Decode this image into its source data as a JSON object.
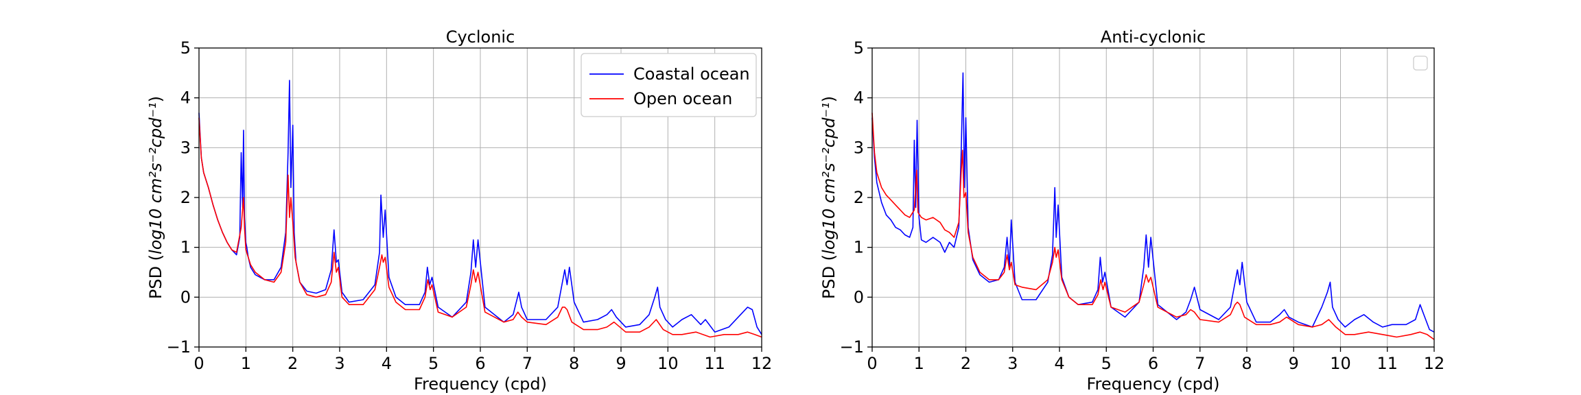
{
  "chart_data": [
    {
      "type": "line",
      "title": "Cyclonic",
      "xlabel": "Frequency (cpd)",
      "ylabel_prefix": "PSD (",
      "ylabel_math": "log10 cm²s⁻²cpd⁻¹",
      "ylabel_suffix": ")",
      "xlim": [
        0,
        12
      ],
      "ylim": [
        -1,
        5
      ],
      "xticks": [
        "0",
        "1",
        "2",
        "3",
        "4",
        "5",
        "6",
        "7",
        "8",
        "9",
        "10",
        "11",
        "12"
      ],
      "yticks": [
        "−1",
        "0",
        "1",
        "2",
        "3",
        "4",
        "5"
      ],
      "grid": true,
      "legend": "top-right",
      "series": [
        {
          "name": "Coastal ocean",
          "color": "#0000ff",
          "x": [
            0,
            0.05,
            0.1,
            0.2,
            0.3,
            0.4,
            0.5,
            0.6,
            0.7,
            0.8,
            0.87,
            0.9,
            0.93,
            0.95,
            0.97,
            1.0,
            1.02,
            1.05,
            1.1,
            1.2,
            1.4,
            1.6,
            1.75,
            1.85,
            1.9,
            1.93,
            1.96,
            2.0,
            2.03,
            2.07,
            2.15,
            2.3,
            2.5,
            2.7,
            2.82,
            2.88,
            2.93,
            2.97,
            3.05,
            3.2,
            3.5,
            3.75,
            3.85,
            3.88,
            3.93,
            3.97,
            4.05,
            4.2,
            4.4,
            4.7,
            4.82,
            4.87,
            4.92,
            4.97,
            5.1,
            5.4,
            5.7,
            5.8,
            5.85,
            5.9,
            5.95,
            6.1,
            6.5,
            6.7,
            6.78,
            6.82,
            6.88,
            7.0,
            7.4,
            7.65,
            7.75,
            7.8,
            7.85,
            7.9,
            8.0,
            8.2,
            8.5,
            8.7,
            8.8,
            8.9,
            9.1,
            9.4,
            9.6,
            9.72,
            9.78,
            9.83,
            9.95,
            10.1,
            10.3,
            10.5,
            10.7,
            10.8,
            11.0,
            11.3,
            11.5,
            11.7,
            11.8,
            11.9,
            12.0
          ],
          "y": [
            3.7,
            2.8,
            2.5,
            2.2,
            1.85,
            1.55,
            1.3,
            1.1,
            0.95,
            0.85,
            1.2,
            2.9,
            1.8,
            3.35,
            1.6,
            1.1,
            1.0,
            0.8,
            0.6,
            0.45,
            0.35,
            0.35,
            0.6,
            1.3,
            2.9,
            4.35,
            2.2,
            3.45,
            1.3,
            0.7,
            0.3,
            0.12,
            0.08,
            0.15,
            0.55,
            1.35,
            0.7,
            0.75,
            0.1,
            -0.1,
            -0.05,
            0.25,
            0.9,
            2.05,
            1.2,
            1.75,
            0.4,
            0.0,
            -0.15,
            -0.15,
            0.1,
            0.6,
            0.25,
            0.4,
            -0.2,
            -0.4,
            -0.1,
            0.5,
            1.15,
            0.6,
            1.15,
            -0.2,
            -0.5,
            -0.35,
            -0.05,
            0.1,
            -0.2,
            -0.45,
            -0.45,
            -0.2,
            0.3,
            0.55,
            0.25,
            0.6,
            -0.1,
            -0.5,
            -0.45,
            -0.35,
            -0.25,
            -0.4,
            -0.6,
            -0.55,
            -0.35,
            0.0,
            0.2,
            -0.2,
            -0.45,
            -0.6,
            -0.45,
            -0.35,
            -0.55,
            -0.45,
            -0.7,
            -0.6,
            -0.4,
            -0.2,
            -0.25,
            -0.6,
            -0.75
          ]
        },
        {
          "name": "Open ocean",
          "color": "#ff0000",
          "x": [
            0,
            0.05,
            0.1,
            0.2,
            0.3,
            0.4,
            0.5,
            0.6,
            0.7,
            0.8,
            0.9,
            0.95,
            0.97,
            1.0,
            1.05,
            1.1,
            1.2,
            1.4,
            1.6,
            1.75,
            1.85,
            1.9,
            1.93,
            1.96,
            2.0,
            2.05,
            2.15,
            2.3,
            2.5,
            2.7,
            2.82,
            2.88,
            2.93,
            2.97,
            3.05,
            3.2,
            3.5,
            3.75,
            3.85,
            3.9,
            3.93,
            3.97,
            4.05,
            4.2,
            4.4,
            4.7,
            4.82,
            4.88,
            4.93,
            4.97,
            5.1,
            5.4,
            5.7,
            5.8,
            5.85,
            5.9,
            5.95,
            6.1,
            6.5,
            6.7,
            6.8,
            6.88,
            7.0,
            7.4,
            7.65,
            7.75,
            7.8,
            7.85,
            7.95,
            8.2,
            8.5,
            8.7,
            8.85,
            9.1,
            9.4,
            9.6,
            9.75,
            9.9,
            10.1,
            10.3,
            10.6,
            10.9,
            11.2,
            11.5,
            11.7,
            11.85,
            12.0
          ],
          "y": [
            3.6,
            2.8,
            2.5,
            2.2,
            1.85,
            1.55,
            1.3,
            1.1,
            0.95,
            0.9,
            1.4,
            2.0,
            1.4,
            0.95,
            0.8,
            0.65,
            0.5,
            0.35,
            0.3,
            0.5,
            1.1,
            2.45,
            1.6,
            2.0,
            1.5,
            0.8,
            0.3,
            0.05,
            0.0,
            0.05,
            0.3,
            0.9,
            0.5,
            0.6,
            0.0,
            -0.15,
            -0.15,
            0.15,
            0.6,
            0.85,
            0.7,
            0.8,
            0.2,
            -0.1,
            -0.25,
            -0.25,
            0.0,
            0.35,
            0.15,
            0.25,
            -0.3,
            -0.4,
            -0.2,
            0.25,
            0.55,
            0.3,
            0.5,
            -0.3,
            -0.5,
            -0.45,
            -0.3,
            -0.4,
            -0.5,
            -0.55,
            -0.4,
            -0.2,
            -0.2,
            -0.25,
            -0.5,
            -0.65,
            -0.65,
            -0.6,
            -0.5,
            -0.7,
            -0.7,
            -0.6,
            -0.45,
            -0.65,
            -0.75,
            -0.75,
            -0.7,
            -0.8,
            -0.75,
            -0.75,
            -0.7,
            -0.75,
            -0.8
          ]
        }
      ]
    },
    {
      "type": "line",
      "title": "Anti-cyclonic",
      "xlabel": "Frequency (cpd)",
      "ylabel_prefix": "PSD (",
      "ylabel_math": "log10 cm²s⁻²cpd⁻¹",
      "ylabel_suffix": ")",
      "xlim": [
        0,
        12
      ],
      "ylim": [
        -1,
        5
      ],
      "xticks": [
        "0",
        "1",
        "2",
        "3",
        "4",
        "5",
        "6",
        "7",
        "8",
        "9",
        "10",
        "11",
        "12"
      ],
      "yticks": [
        "−1",
        "0",
        "1",
        "2",
        "3",
        "4",
        "5"
      ],
      "grid": true,
      "legend": "top-right (empty)",
      "series": [
        {
          "color": "#0000ff",
          "x": [
            0,
            0.05,
            0.1,
            0.2,
            0.3,
            0.4,
            0.5,
            0.6,
            0.7,
            0.8,
            0.87,
            0.9,
            0.93,
            0.96,
            1.0,
            1.05,
            1.15,
            1.3,
            1.45,
            1.55,
            1.65,
            1.75,
            1.85,
            1.9,
            1.94,
            1.97,
            2.0,
            2.05,
            2.15,
            2.3,
            2.5,
            2.7,
            2.82,
            2.88,
            2.93,
            2.97,
            3.05,
            3.2,
            3.5,
            3.75,
            3.85,
            3.9,
            3.93,
            3.97,
            4.05,
            4.2,
            4.4,
            4.7,
            4.82,
            4.87,
            4.92,
            4.97,
            5.1,
            5.4,
            5.7,
            5.8,
            5.85,
            5.9,
            5.95,
            6.1,
            6.5,
            6.7,
            6.8,
            6.88,
            7.0,
            7.4,
            7.65,
            7.75,
            7.8,
            7.85,
            7.9,
            8.0,
            8.2,
            8.5,
            8.7,
            8.8,
            8.9,
            9.1,
            9.4,
            9.6,
            9.72,
            9.78,
            9.83,
            9.95,
            10.1,
            10.3,
            10.5,
            10.7,
            10.9,
            11.1,
            11.4,
            11.6,
            11.7,
            11.8,
            11.9,
            12.0
          ],
          "y": [
            3.6,
            2.8,
            2.3,
            1.9,
            1.65,
            1.55,
            1.4,
            1.35,
            1.25,
            1.2,
            1.4,
            3.15,
            1.8,
            3.55,
            1.6,
            1.15,
            1.1,
            1.2,
            1.1,
            0.9,
            1.1,
            1.0,
            1.4,
            2.9,
            4.5,
            2.2,
            3.6,
            1.4,
            0.75,
            0.45,
            0.3,
            0.35,
            0.6,
            1.2,
            0.6,
            1.55,
            0.3,
            -0.05,
            -0.05,
            0.3,
            0.85,
            2.2,
            1.2,
            1.85,
            0.4,
            0.0,
            -0.15,
            -0.1,
            0.15,
            0.8,
            0.3,
            0.5,
            -0.2,
            -0.4,
            -0.1,
            0.6,
            1.25,
            0.6,
            1.2,
            -0.15,
            -0.45,
            -0.3,
            -0.05,
            0.2,
            -0.25,
            -0.45,
            -0.2,
            0.3,
            0.55,
            0.25,
            0.7,
            -0.1,
            -0.5,
            -0.5,
            -0.35,
            -0.25,
            -0.4,
            -0.5,
            -0.6,
            -0.2,
            0.1,
            0.3,
            -0.2,
            -0.45,
            -0.6,
            -0.45,
            -0.35,
            -0.5,
            -0.6,
            -0.55,
            -0.55,
            -0.45,
            -0.15,
            -0.4,
            -0.65,
            -0.7
          ]
        },
        {
          "color": "#ff0000",
          "x": [
            0,
            0.05,
            0.1,
            0.2,
            0.3,
            0.4,
            0.5,
            0.6,
            0.7,
            0.8,
            0.9,
            0.95,
            0.98,
            1.05,
            1.15,
            1.3,
            1.45,
            1.55,
            1.65,
            1.75,
            1.85,
            1.9,
            1.93,
            1.96,
            2.0,
            2.05,
            2.15,
            2.3,
            2.5,
            2.7,
            2.82,
            2.88,
            2.93,
            2.97,
            3.05,
            3.2,
            3.5,
            3.75,
            3.85,
            3.9,
            3.93,
            3.97,
            4.05,
            4.2,
            4.4,
            4.7,
            4.82,
            4.88,
            4.93,
            4.97,
            5.1,
            5.4,
            5.7,
            5.8,
            5.85,
            5.9,
            5.95,
            6.1,
            6.5,
            6.7,
            6.8,
            6.88,
            7.0,
            7.4,
            7.65,
            7.75,
            7.8,
            7.85,
            7.95,
            8.2,
            8.5,
            8.7,
            8.85,
            9.1,
            9.4,
            9.6,
            9.75,
            9.9,
            10.1,
            10.3,
            10.6,
            10.9,
            11.2,
            11.5,
            11.7,
            11.85,
            12.0
          ],
          "y": [
            3.7,
            2.9,
            2.5,
            2.2,
            2.05,
            1.95,
            1.85,
            1.75,
            1.65,
            1.6,
            1.75,
            2.55,
            1.7,
            1.6,
            1.55,
            1.6,
            1.5,
            1.35,
            1.3,
            1.2,
            1.5,
            2.5,
            2.95,
            2.0,
            2.1,
            1.3,
            0.8,
            0.5,
            0.35,
            0.35,
            0.5,
            0.85,
            0.55,
            0.7,
            0.25,
            0.2,
            0.15,
            0.35,
            0.7,
            1.0,
            0.8,
            0.95,
            0.35,
            0.0,
            -0.15,
            -0.15,
            0.05,
            0.35,
            0.15,
            0.3,
            -0.2,
            -0.3,
            -0.1,
            0.25,
            0.45,
            0.3,
            0.4,
            -0.2,
            -0.4,
            -0.35,
            -0.25,
            -0.3,
            -0.45,
            -0.5,
            -0.35,
            -0.15,
            -0.1,
            -0.15,
            -0.4,
            -0.55,
            -0.55,
            -0.5,
            -0.4,
            -0.55,
            -0.6,
            -0.55,
            -0.45,
            -0.6,
            -0.75,
            -0.75,
            -0.7,
            -0.75,
            -0.8,
            -0.75,
            -0.7,
            -0.75,
            -0.85
          ]
        }
      ]
    }
  ]
}
